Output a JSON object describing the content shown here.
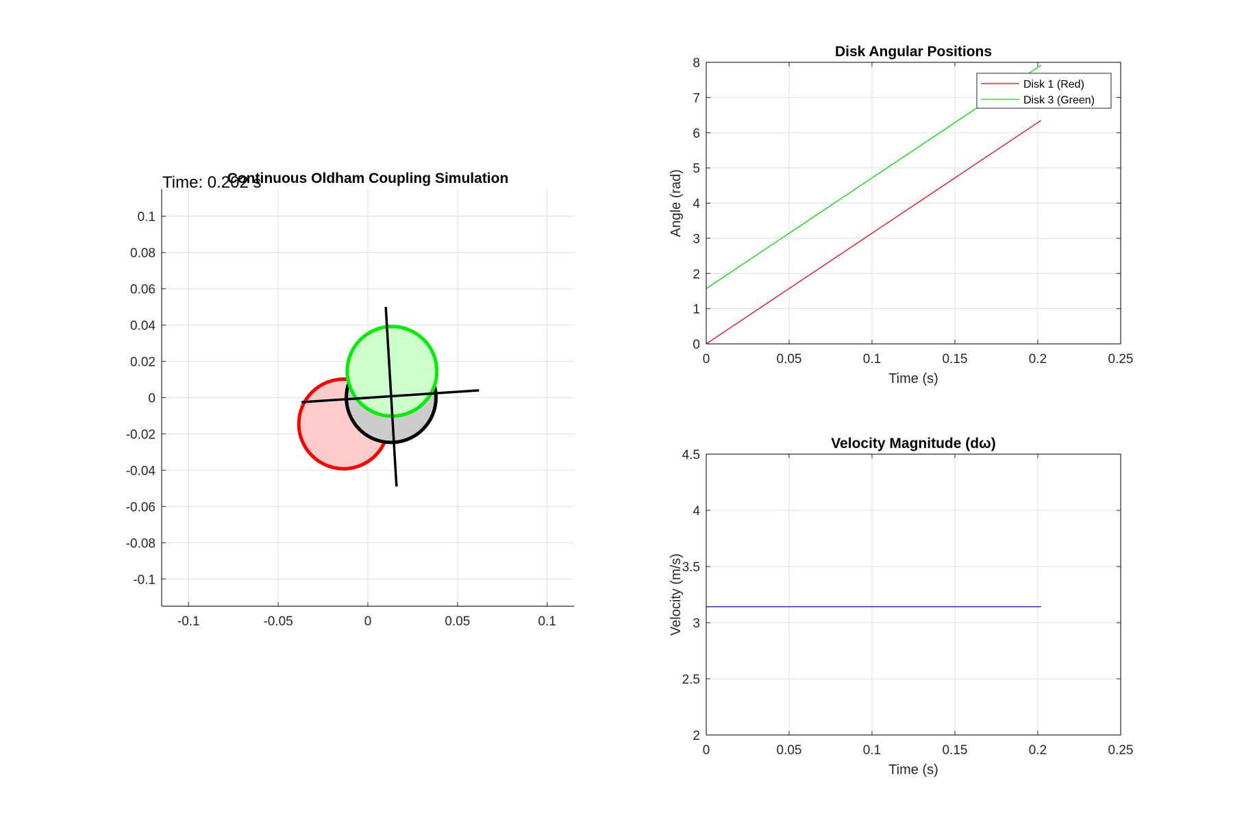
{
  "chart_data": [
    {
      "id": "sim",
      "type": "scatter",
      "title": "Continuous Oldham Coupling Simulation",
      "annotation": "Time: 0.202 s",
      "xlabel": "",
      "ylabel": "",
      "xlim": [
        -0.115,
        0.115
      ],
      "ylim": [
        -0.115,
        0.115
      ],
      "xticks": [
        -0.1,
        -0.05,
        0,
        0.05,
        0.1
      ],
      "xtick_labels": [
        "-0.1",
        "-0.05",
        "0",
        "0.05",
        "0.1"
      ],
      "yticks": [
        0.1,
        0.08,
        0.06,
        0.04,
        0.02,
        0,
        -0.02,
        -0.04,
        -0.06,
        -0.08,
        -0.1
      ],
      "ytick_labels": [
        "0.1",
        "0.08",
        "0.06",
        "0.04",
        "0.02",
        "0",
        "-0.02",
        "-0.04",
        "-0.06",
        "-0.08",
        "-0.1"
      ],
      "grid": true,
      "disks": [
        {
          "name": "disk-1",
          "cx": -0.0135,
          "cy": -0.0145,
          "r": 0.025,
          "stroke": "#ff0000",
          "fill": "#ffcccc"
        },
        {
          "name": "disk-2",
          "cx": 0.013,
          "cy": 0.0,
          "r": 0.025,
          "stroke": "#000000",
          "fill": "#cccccc"
        },
        {
          "name": "disk-3",
          "cx": 0.0135,
          "cy": 0.0145,
          "r": 0.025,
          "stroke": "#00ee00",
          "fill": "#ccffcc"
        }
      ],
      "slots": [
        {
          "name": "slot-line-horizontal",
          "x1": -0.037,
          "y1": -0.0025,
          "x2": 0.062,
          "y2": 0.004
        },
        {
          "name": "slot-line-vertical",
          "x1": 0.01,
          "y1": 0.05,
          "x2": 0.016,
          "y2": -0.049
        }
      ]
    },
    {
      "id": "angle",
      "type": "line",
      "title": "Disk Angular Positions",
      "xlabel": "Time (s)",
      "ylabel": "Angle (rad)",
      "xlim": [
        0,
        0.25
      ],
      "ylim": [
        0,
        8
      ],
      "xticks": [
        0,
        0.05,
        0.1,
        0.15,
        0.2,
        0.25
      ],
      "xtick_labels": [
        "0",
        "0.05",
        "0.1",
        "0.15",
        "0.2",
        "0.25"
      ],
      "yticks": [
        0,
        1,
        2,
        3,
        4,
        5,
        6,
        7,
        8
      ],
      "ytick_labels": [
        "0",
        "1",
        "2",
        "3",
        "4",
        "5",
        "6",
        "7",
        "8"
      ],
      "grid": true,
      "legend": "top-right",
      "series": [
        {
          "name": "Disk 1 (Red)",
          "color": "#ff0000",
          "x": [
            0,
            0.202
          ],
          "y": [
            0,
            6.35
          ]
        },
        {
          "name": "Disk 3 (Green)",
          "color": "#00dd00",
          "x": [
            0,
            0.202
          ],
          "y": [
            1.5708,
            7.92
          ]
        }
      ]
    },
    {
      "id": "velocity",
      "type": "line",
      "title": "Velocity Magnitude (dω)",
      "xlabel": "Time (s)",
      "ylabel": "Velocity (m/s)",
      "xlim": [
        0,
        0.25
      ],
      "ylim": [
        2,
        4.5
      ],
      "xticks": [
        0,
        0.05,
        0.1,
        0.15,
        0.2,
        0.25
      ],
      "xtick_labels": [
        "0",
        "0.05",
        "0.1",
        "0.15",
        "0.2",
        "0.25"
      ],
      "yticks": [
        2,
        2.5,
        3,
        3.5,
        4,
        4.5
      ],
      "ytick_labels": [
        "2",
        "2.5",
        "3",
        "3.5",
        "4",
        "4.5"
      ],
      "grid": true,
      "series": [
        {
          "color": "#0000ff",
          "x": [
            0,
            0.202
          ],
          "y": [
            3.1416,
            3.1416
          ]
        }
      ]
    }
  ]
}
